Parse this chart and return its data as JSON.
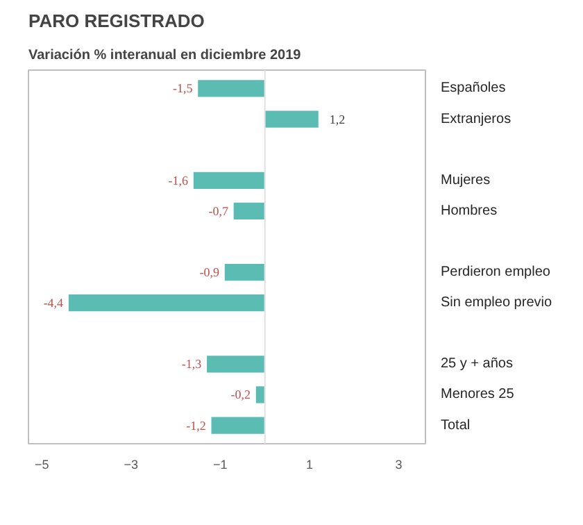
{
  "chart_data": {
    "type": "bar",
    "orientation": "horizontal",
    "title": "PARO REGISTRADO",
    "subtitle": "Variación % interanual en diciembre 2019",
    "categories": [
      "Españoles",
      "Extranjeros",
      null,
      "Mujeres",
      "Hombres",
      null,
      "Perdieron empleo",
      "Sin empleo previo",
      null,
      "25 y + años",
      "Menores 25",
      "Total"
    ],
    "values": [
      -1.5,
      1.2,
      null,
      -1.6,
      -0.7,
      null,
      -0.9,
      -4.4,
      null,
      -1.3,
      -0.2,
      -1.2
    ],
    "value_labels": [
      "-1,5",
      "1,2",
      null,
      "-1,6",
      "-0,7",
      null,
      "-0,9",
      "-4,4",
      null,
      "-1,3",
      "-0,2",
      "-1,2"
    ],
    "color": "#5bbcb4",
    "xlim": [
      -5.3,
      3.6
    ],
    "xticks": [
      -5,
      -3,
      -1,
      1,
      3
    ],
    "ref_lines": [
      {
        "axis": "x",
        "value": 0,
        "color": "#e0e0e0"
      }
    ],
    "grid": false
  }
}
